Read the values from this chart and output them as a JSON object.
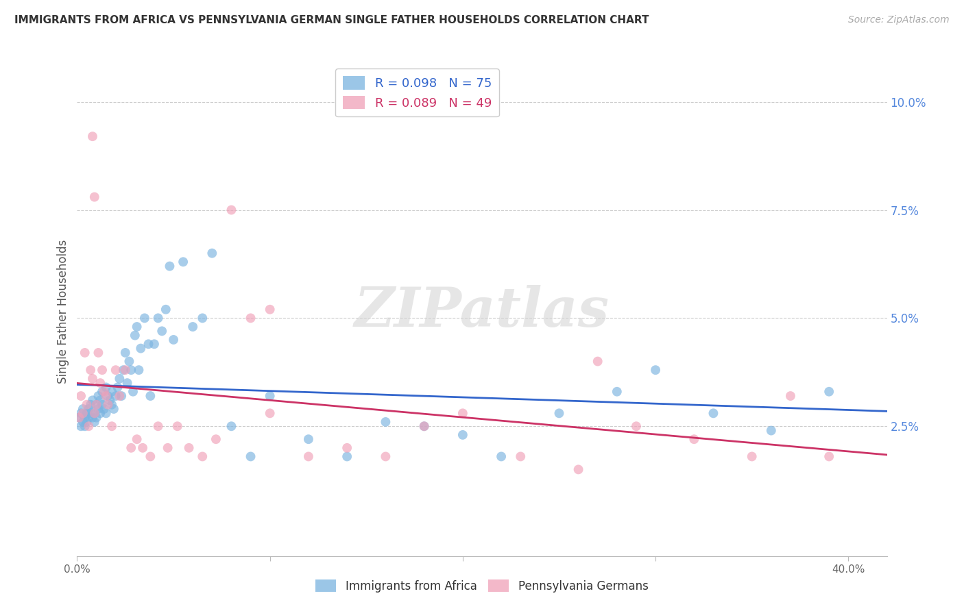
{
  "title": "IMMIGRANTS FROM AFRICA VS PENNSYLVANIA GERMAN SINGLE FATHER HOUSEHOLDS CORRELATION CHART",
  "source": "Source: ZipAtlas.com",
  "ylabel": "Single Father Households",
  "yticks": [
    0.0,
    0.025,
    0.05,
    0.075,
    0.1
  ],
  "ytick_labels": [
    "",
    "2.5%",
    "5.0%",
    "7.5%",
    "10.0%"
  ],
  "xlim": [
    0.0,
    0.42
  ],
  "ylim": [
    -0.005,
    0.108
  ],
  "blue_color": "#7ab3e0",
  "pink_color": "#f0a0b8",
  "blue_line_color": "#3366cc",
  "pink_line_color": "#cc3366",
  "R_blue": 0.098,
  "N_blue": 75,
  "R_pink": 0.089,
  "N_pink": 49,
  "legend_label_blue": "Immigrants from Africa",
  "legend_label_pink": "Pennsylvania Germans",
  "watermark": "ZIPatlas",
  "blue_x": [
    0.001,
    0.002,
    0.002,
    0.003,
    0.003,
    0.004,
    0.004,
    0.005,
    0.005,
    0.006,
    0.006,
    0.007,
    0.007,
    0.008,
    0.008,
    0.009,
    0.009,
    0.01,
    0.01,
    0.011,
    0.011,
    0.012,
    0.012,
    0.013,
    0.013,
    0.014,
    0.015,
    0.015,
    0.016,
    0.017,
    0.018,
    0.018,
    0.019,
    0.02,
    0.021,
    0.022,
    0.023,
    0.024,
    0.025,
    0.026,
    0.027,
    0.028,
    0.029,
    0.03,
    0.031,
    0.032,
    0.033,
    0.035,
    0.037,
    0.038,
    0.04,
    0.042,
    0.044,
    0.046,
    0.048,
    0.05,
    0.055,
    0.06,
    0.065,
    0.07,
    0.08,
    0.09,
    0.1,
    0.12,
    0.14,
    0.16,
    0.18,
    0.2,
    0.22,
    0.25,
    0.28,
    0.3,
    0.33,
    0.36,
    0.39
  ],
  "blue_y": [
    0.027,
    0.025,
    0.028,
    0.026,
    0.029,
    0.025,
    0.027,
    0.028,
    0.026,
    0.027,
    0.029,
    0.028,
    0.03,
    0.027,
    0.031,
    0.028,
    0.026,
    0.03,
    0.027,
    0.029,
    0.032,
    0.028,
    0.031,
    0.03,
    0.033,
    0.029,
    0.034,
    0.028,
    0.032,
    0.031,
    0.03,
    0.033,
    0.029,
    0.032,
    0.034,
    0.036,
    0.032,
    0.038,
    0.042,
    0.035,
    0.04,
    0.038,
    0.033,
    0.046,
    0.048,
    0.038,
    0.043,
    0.05,
    0.044,
    0.032,
    0.044,
    0.05,
    0.047,
    0.052,
    0.062,
    0.045,
    0.063,
    0.048,
    0.05,
    0.065,
    0.025,
    0.018,
    0.032,
    0.022,
    0.018,
    0.026,
    0.025,
    0.023,
    0.018,
    0.028,
    0.033,
    0.038,
    0.028,
    0.024,
    0.033
  ],
  "pink_x": [
    0.001,
    0.002,
    0.003,
    0.004,
    0.005,
    0.006,
    0.007,
    0.008,
    0.009,
    0.01,
    0.011,
    0.012,
    0.013,
    0.014,
    0.015,
    0.016,
    0.018,
    0.02,
    0.022,
    0.025,
    0.028,
    0.031,
    0.034,
    0.038,
    0.042,
    0.047,
    0.052,
    0.058,
    0.065,
    0.072,
    0.08,
    0.09,
    0.1,
    0.12,
    0.14,
    0.16,
    0.18,
    0.2,
    0.23,
    0.26,
    0.29,
    0.32,
    0.35,
    0.37,
    0.39,
    0.008,
    0.009,
    0.1,
    0.27
  ],
  "pink_y": [
    0.027,
    0.032,
    0.028,
    0.042,
    0.03,
    0.025,
    0.038,
    0.036,
    0.028,
    0.03,
    0.042,
    0.035,
    0.038,
    0.033,
    0.032,
    0.03,
    0.025,
    0.038,
    0.032,
    0.038,
    0.02,
    0.022,
    0.02,
    0.018,
    0.025,
    0.02,
    0.025,
    0.02,
    0.018,
    0.022,
    0.075,
    0.05,
    0.028,
    0.018,
    0.02,
    0.018,
    0.025,
    0.028,
    0.018,
    0.015,
    0.025,
    0.022,
    0.018,
    0.032,
    0.018,
    0.092,
    0.078,
    0.052,
    0.04
  ]
}
